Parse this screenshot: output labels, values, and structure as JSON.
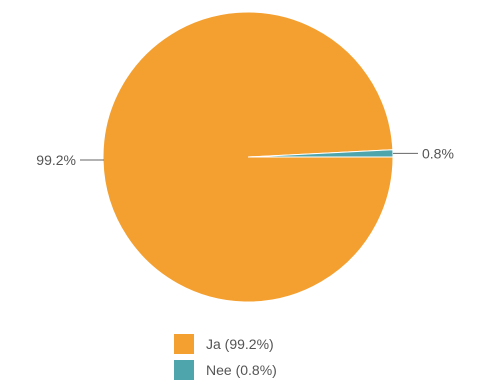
{
  "chart_data": {
    "type": "pie",
    "slices": [
      {
        "label": "Ja",
        "value": 99.2,
        "color": "#F4A030"
      },
      {
        "label": "Nee",
        "value": 0.8,
        "color": "#4FA5AC"
      }
    ],
    "data_labels": [
      "99.2%",
      "0.8%"
    ],
    "legend": {
      "placement": "bottom",
      "entries": [
        "Ja (99.2%)",
        "Nee (0.8%)"
      ]
    }
  }
}
